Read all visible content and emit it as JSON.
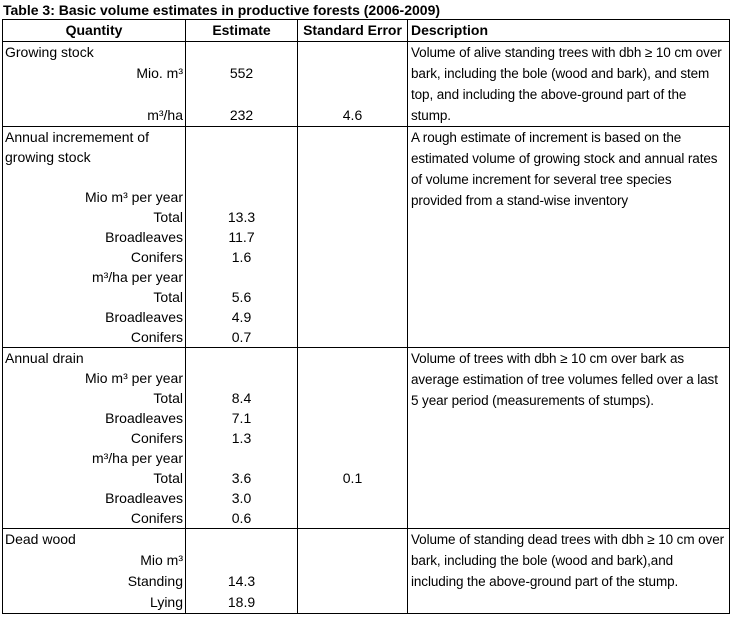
{
  "title": "Table 3: Basic volume estimates in productive forests (2006-2009)",
  "colors": {
    "border": "#000000",
    "text": "#000000",
    "background": "#ffffff"
  },
  "table": {
    "headers": [
      "Quantity",
      "Estimate",
      "Standard Error",
      "Description"
    ],
    "sections": [
      {
        "name": "Growing stock",
        "rows": [
          {
            "q": "Growing stock",
            "align": "left",
            "est": "",
            "se": ""
          },
          {
            "q": "Mio. m³",
            "align": "right",
            "est": "552",
            "se": ""
          },
          {
            "q": "",
            "align": "right",
            "est": "",
            "se": ""
          },
          {
            "q": "m³/ha",
            "align": "right",
            "est": "232",
            "se": "4.6"
          }
        ],
        "description": "Volume of alive standing trees  with dbh ≥ 10 cm over bark, including the bole (wood and bark), and stem top, and including the above-ground part of the stump."
      },
      {
        "name": "Annual incremement of growing stock",
        "rows": [
          {
            "q": "Annual incremement of",
            "align": "left",
            "est": "",
            "se": ""
          },
          {
            "q": "growing stock",
            "align": "left",
            "est": "",
            "se": ""
          },
          {
            "q": "",
            "align": "right",
            "est": "",
            "se": ""
          },
          {
            "q": "Mio m³ per year",
            "align": "right",
            "est": "",
            "se": ""
          },
          {
            "q": "Total",
            "align": "right",
            "est": "13.3",
            "se": ""
          },
          {
            "q": "Broadleaves",
            "align": "right",
            "est": "11.7",
            "se": ""
          },
          {
            "q": "Conifers",
            "align": "right",
            "est": "1.6",
            "se": ""
          },
          {
            "q": "m³/ha per year",
            "align": "right",
            "est": "",
            "se": ""
          },
          {
            "q": "Total",
            "align": "right",
            "est": "5.6",
            "se": ""
          },
          {
            "q": "Broadleaves",
            "align": "right",
            "est": "4.9",
            "se": ""
          },
          {
            "q": "Conifers",
            "align": "right",
            "est": "0.7",
            "se": ""
          }
        ],
        "description": "A rough estimate of increment is based on the estimated volume of growing stock and annual rates of volume increment for several tree species provided from a stand-wise inventory"
      },
      {
        "name": "Annual drain",
        "rows": [
          {
            "q": "Annual drain",
            "align": "left",
            "est": "",
            "se": ""
          },
          {
            "q": "Mio m³ per year",
            "align": "right",
            "est": "",
            "se": ""
          },
          {
            "q": "Total",
            "align": "right",
            "est": "8.4",
            "se": ""
          },
          {
            "q": "Broadleaves",
            "align": "right",
            "est": "7.1",
            "se": ""
          },
          {
            "q": "Conifers",
            "align": "right",
            "est": "1.3",
            "se": ""
          },
          {
            "q": "m³/ha per year",
            "align": "right",
            "est": "",
            "se": ""
          },
          {
            "q": "Total",
            "align": "right",
            "est": "3.6",
            "se": "0.1"
          },
          {
            "q": "Broadleaves",
            "align": "right",
            "est": "3.0",
            "se": ""
          },
          {
            "q": "Conifers",
            "align": "right",
            "est": "0.6",
            "se": ""
          }
        ],
        "description": "Volume of trees with dbh ≥ 10 cm over bark as average estimation of tree volumes felled over a last 5 year period (measurements of stumps)."
      },
      {
        "name": "Dead wood",
        "rows": [
          {
            "q": "Dead wood",
            "align": "left",
            "est": "",
            "se": ""
          },
          {
            "q": "Mio m³",
            "align": "right",
            "est": "",
            "se": ""
          },
          {
            "q": "Standing",
            "align": "right",
            "est": "14.3",
            "se": ""
          },
          {
            "q": "Lying",
            "align": "right",
            "est": "18.9",
            "se": ""
          }
        ],
        "description": "Volume of standing dead trees  with dbh ≥ 10 cm over bark, including the bole (wood and bark),and including the above-ground part of the stump."
      }
    ]
  }
}
